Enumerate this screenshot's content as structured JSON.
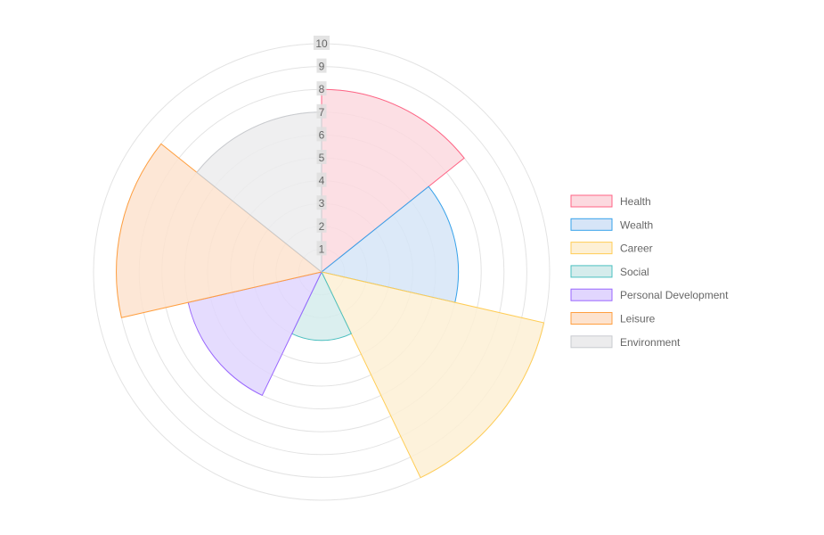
{
  "chart_data": {
    "type": "polarArea",
    "categories": [
      "Health",
      "Wealth",
      "Career",
      "Social",
      "Personal Development",
      "Leisure",
      "Environment"
    ],
    "values": [
      8,
      6,
      10,
      3,
      6,
      9,
      7
    ],
    "rlim": [
      0,
      10
    ],
    "ticks": [
      "1",
      "2",
      "3",
      "4",
      "5",
      "6",
      "7",
      "8",
      "9",
      "10"
    ],
    "grid": true,
    "legend_position": "right",
    "colors": {
      "fill": [
        "#fcd9df",
        "#d6e5f7",
        "#fdf0d5",
        "#d5ecec",
        "#e1d6fe",
        "#fde3cf",
        "#ececed"
      ],
      "stroke": [
        "#ff6384",
        "#36a2eb",
        "#ffcd56",
        "#4bc0c0",
        "#9966ff",
        "#ff9f40",
        "#c9cbcf"
      ]
    }
  }
}
